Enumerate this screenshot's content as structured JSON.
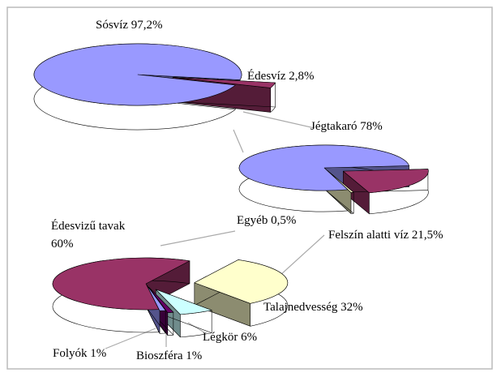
{
  "chart_data": [
    {
      "type": "pie",
      "categories": [
        "Sósvíz",
        "Édesvíz"
      ],
      "values": [
        97.2,
        2.8
      ],
      "value_labels": [
        "97,2%",
        "2,8%"
      ],
      "colors": [
        "#9999ff",
        "#993366"
      ]
    },
    {
      "type": "pie",
      "categories": [
        "Jégtakaró",
        "Felszín alatti víz",
        "Egyéb"
      ],
      "values": [
        78,
        21.5,
        0.5
      ],
      "value_labels": [
        "78%",
        "21,5%",
        "0,5%"
      ],
      "colors": [
        "#9999ff",
        "#993366",
        "#ffffcc"
      ]
    },
    {
      "type": "pie",
      "categories": [
        "Édesvizű tavak",
        "Talajnedvesség",
        "Légkör",
        "Bioszféra",
        "Folyók"
      ],
      "values": [
        60,
        32,
        6,
        1,
        1
      ],
      "value_labels": [
        "60%",
        "32%",
        "6%",
        "1%",
        "1%"
      ],
      "colors": [
        "#993366",
        "#ffffcc",
        "#ccffff",
        "#660066",
        "#9999ff"
      ]
    }
  ]
}
